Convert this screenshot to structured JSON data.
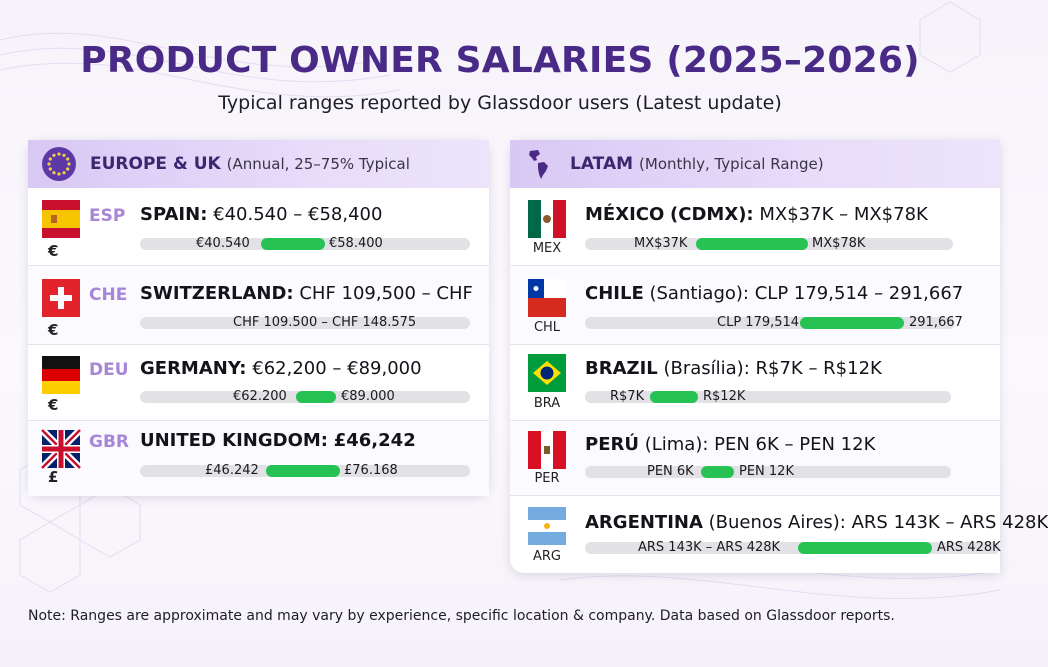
{
  "header": {
    "title": "PRODUCT OWNER SALARIES (2025–2026)",
    "subtitle": "Typical ranges reported by Glassdoor users (Latest update)"
  },
  "europe": {
    "title": "EUROPE & UK",
    "note": "(Annual, 25–75% Typical",
    "rows": [
      {
        "code": "ESP",
        "currency_symbol": "€",
        "name": "SPAIN:",
        "range": "€40.540 – €58,400",
        "low_label": "€40.540",
        "high_label": "€58.400"
      },
      {
        "code": "CHE",
        "currency_symbol": "€",
        "name": "SWITZERLAND:",
        "range": "CHF 109,500 – CHF",
        "low_label": "CHF 109.500 – CHF 148.575",
        "high_label": ""
      },
      {
        "code": "DEU",
        "currency_symbol": "€",
        "name": "GERMANY:",
        "range": "€62,200 – €89,000",
        "low_label": "€62.200",
        "high_label": "€89.000"
      },
      {
        "code": "GBR",
        "currency_symbol": "£",
        "name": "UNITED KINGDOM:",
        "range": "£46,242",
        "low_label": "£46.242",
        "high_label": "£76.168"
      }
    ]
  },
  "latam": {
    "title": "LATAM",
    "note": "(Monthly, Typical Range)",
    "rows": [
      {
        "code": "MEX",
        "name": "MÉXICO",
        "qualifier": "(CDMX):",
        "range": "MX$37K – MX$78K",
        "low_label": "MX$37K",
        "high_label": "MX$78K"
      },
      {
        "code": "CHL",
        "name": "CHILE",
        "qualifier": "(Santiago):",
        "range": "CLP 179,514 – 291,667",
        "low_label": "CLP 179,514",
        "high_label": "291,667"
      },
      {
        "code": "BRA",
        "name": "BRAZIL",
        "qualifier": "(Brasília):",
        "range": "R$7K – R$12K",
        "low_label": "R$7K",
        "high_label": "R$12K"
      },
      {
        "code": "PER",
        "name": "PERÚ",
        "qualifier": "(Lima):",
        "range": "PEN 6K – PEN 12K",
        "low_label": "PEN 6K",
        "high_label": "PEN 12K"
      },
      {
        "code": "ARG",
        "name": "ARGENTINA",
        "qualifier": "(Buenos Aires):",
        "range": "ARS 143K – ARS 428K",
        "low_label": "ARS 143K – ARS 428K",
        "high_label": "ARS 428K"
      }
    ]
  },
  "footer": {
    "note": "Note: Ranges are approximate and may vary by experience, specific location & company. Data based on Glassdoor reports."
  },
  "colors": {
    "title": "#4a2a87",
    "code": "#a786d8",
    "bar_fill": "#26c254",
    "bar_track": "#e2e1e6",
    "header_band": "#d8c8f4"
  },
  "chart_data": [
    {
      "type": "bar",
      "title": "EUROPE & UK",
      "categories": [
        "SPAIN",
        "SWITZERLAND",
        "GERMANY",
        "UNITED KINGDOM"
      ],
      "series": [
        {
          "values_low": [
            40540,
            109500,
            62200,
            46242
          ],
          "values_high": [
            58400,
            148575,
            89000,
            76168
          ]
        }
      ]
    },
    {
      "type": "bar",
      "title": "LATAM",
      "categories": [
        "MÉXICO",
        "CHILE",
        "BRAZIL",
        "PERÚ",
        "ARGENTINA"
      ],
      "series": [
        {
          "values_low": [
            37000,
            179514,
            7000,
            6000,
            143000
          ],
          "values_high": [
            78000,
            291667,
            12000,
            12000,
            428000
          ]
        }
      ]
    }
  ]
}
